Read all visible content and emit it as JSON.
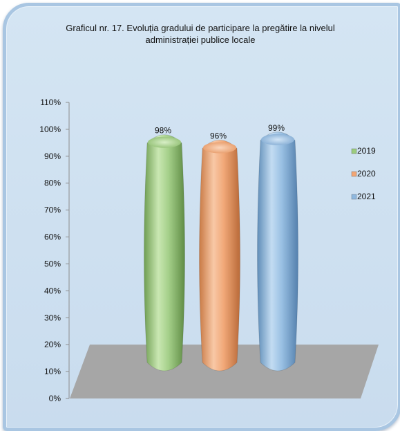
{
  "chart_data": {
    "type": "bar",
    "title": "Graficul nr. 17. Evoluția gradului de participare la pregătire la nivelul administrației publice locale",
    "title_lines": [
      "Graficul nr. 17. Evoluția gradului de participare la pregătire la nivelul",
      "administrației publice locale"
    ],
    "categories": [
      "2019",
      "2020",
      "2021"
    ],
    "values": [
      98,
      96,
      99
    ],
    "data_labels": [
      "98%",
      "96%",
      "99%"
    ],
    "series": [
      {
        "name": "2019",
        "value": 98,
        "color": "#9ccc7e"
      },
      {
        "name": "2020",
        "value": 96,
        "color": "#f2a675"
      },
      {
        "name": "2021",
        "value": 99,
        "color": "#8fb8de"
      }
    ],
    "ylim": [
      0,
      110
    ],
    "y_ticks": [
      "0%",
      "10%",
      "20%",
      "30%",
      "40%",
      "50%",
      "60%",
      "70%",
      "80%",
      "90%",
      "100%",
      "110%"
    ],
    "legend_position": "right",
    "floor_color": "#a6a6a6",
    "background_color": "#cfe1f1"
  }
}
